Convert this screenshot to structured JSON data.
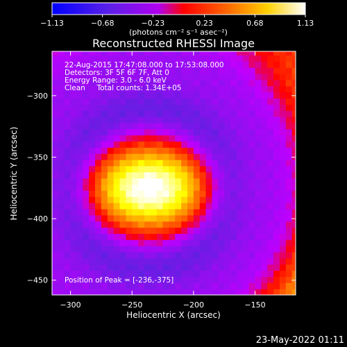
{
  "chart_data": {
    "type": "heatmap",
    "title": "Reconstructed RHESSI Image",
    "xlabel": "Heliocentric X (arcsec)",
    "ylabel": "Heliocentric Y (arcsec)",
    "xlim": [
      -315,
      -117
    ],
    "ylim": [
      -462,
      -264
    ],
    "xticks": [
      -300,
      -250,
      -200,
      -150
    ],
    "yticks": [
      -300,
      -350,
      -400,
      -450
    ],
    "xtick_labels": [
      "−300",
      "−250",
      "−200",
      "−150"
    ],
    "ytick_labels": [
      "−300",
      "−350",
      "−400",
      "−450"
    ],
    "colorbar": {
      "min": -1.13,
      "max": 1.13,
      "ticks": [
        -1.13,
        -0.68,
        -0.23,
        0.23,
        0.68,
        1.13
      ],
      "tick_labels": [
        "−1.13",
        "−0.68",
        "−0.23",
        "0.23",
        "0.68",
        "1.13"
      ],
      "unit_label": "(photons cm⁻² s⁻¹ asec⁻²)",
      "colors": [
        "#0000ff",
        "#6020e0",
        "#c000ff",
        "#ff0000",
        "#ff8000",
        "#ffff00",
        "#ffffff"
      ]
    },
    "annotations": [
      "22-Aug-2015 17:47:08.000 to 17:53:08.000",
      "Detectors: 3F 5F 6F 7F, Att 0",
      "Energy Range: 3.0 - 6.0 keV",
      "Clean     Total counts: 1.34E+05"
    ],
    "peak_label": "Position of Peak = [-236,-375]",
    "peak": {
      "x": -236,
      "y": -375,
      "value": 1.13
    },
    "grid": false
  },
  "footer_date": "23-May-2022 01:11"
}
